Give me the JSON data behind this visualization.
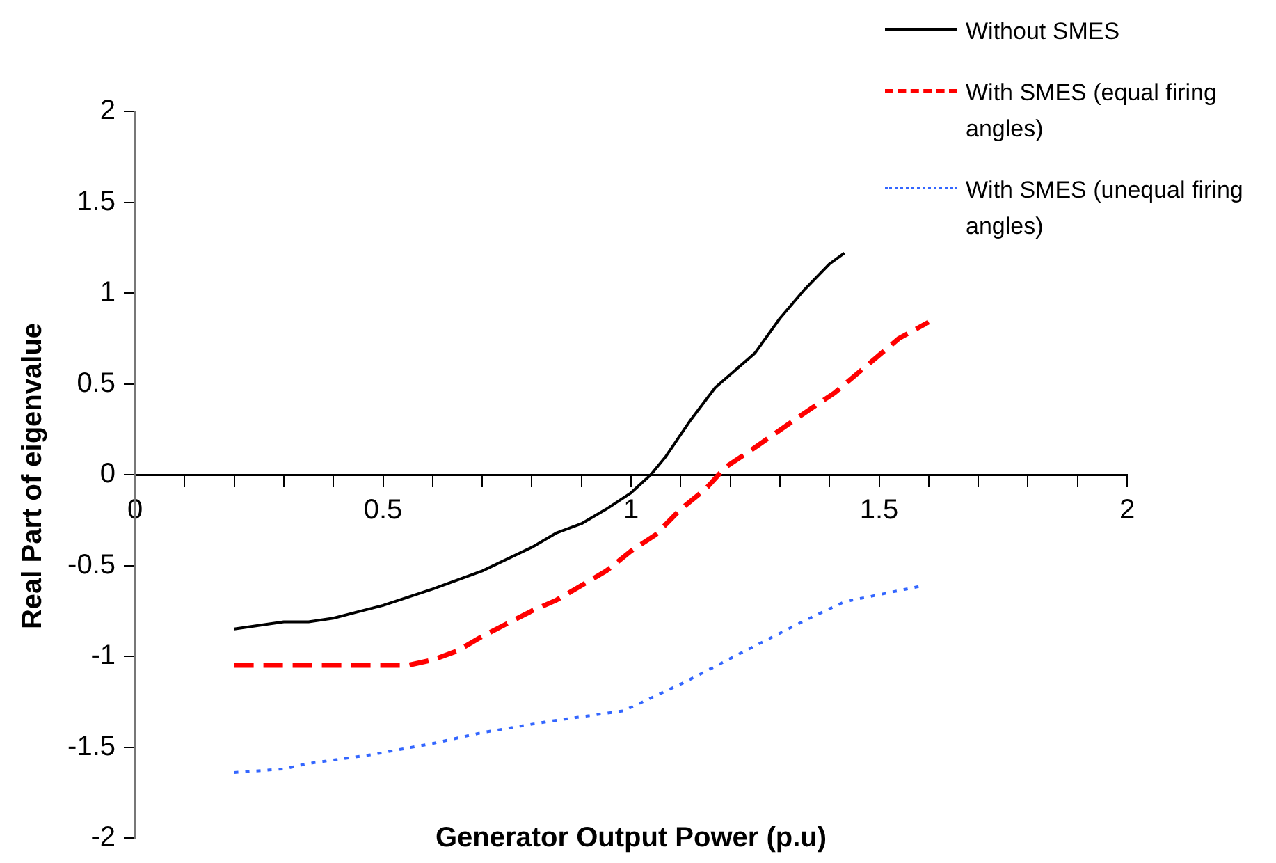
{
  "chart_data": {
    "type": "line",
    "xlabel": "Generator Output Power (p.u)",
    "ylabel": "Real Part of eigenvalue",
    "xlim": [
      0,
      2
    ],
    "xticks": [
      0,
      {
        "value": 0.1,
        "label": null
      },
      {
        "value": 0.2,
        "label": null
      },
      {
        "value": 0.3,
        "label": null
      },
      {
        "value": 0.4,
        "label": null
      },
      0.5,
      {
        "value": 0.6,
        "label": null
      },
      {
        "value": 0.7,
        "label": null
      },
      {
        "value": 0.8,
        "label": null
      },
      {
        "value": 0.9,
        "label": null
      },
      1,
      {
        "value": 1.1,
        "label": null
      },
      {
        "value": 1.2,
        "label": null
      },
      {
        "value": 1.3,
        "label": null
      },
      {
        "value": 1.4,
        "label": null
      },
      1.5,
      {
        "value": 1.6,
        "label": null
      },
      {
        "value": 1.7,
        "label": null
      },
      {
        "value": 1.8,
        "label": null
      },
      {
        "value": 1.9,
        "label": null
      },
      2
    ],
    "ylim": [
      -2,
      2
    ],
    "yticks": [
      -2,
      -1.5,
      -1,
      -0.5,
      0,
      0.5,
      1,
      1.5,
      2
    ],
    "grid": false,
    "legend": "top right",
    "marker": "none",
    "series": [
      {
        "name": "Without SMES",
        "color": "#000000",
        "line_style": "solid",
        "x": [
          0.2,
          0.3,
          0.35,
          0.4,
          0.5,
          0.6,
          0.7,
          0.8,
          0.85,
          0.9,
          0.95,
          1.0,
          1.04,
          1.07,
          1.12,
          1.17,
          1.25,
          1.3,
          1.35,
          1.4,
          1.43
        ],
        "values": [
          -0.85,
          -0.81,
          -0.81,
          -0.79,
          -0.72,
          -0.63,
          -0.53,
          -0.4,
          -0.32,
          -0.27,
          -0.19,
          -0.1,
          0,
          0.1,
          0.3,
          0.48,
          0.67,
          0.86,
          1.02,
          1.16,
          1.22
        ]
      },
      {
        "name": "With SMES (equal firing angles)",
        "color": "#ff0000",
        "line_style": "dashed",
        "x": [
          0.2,
          0.3,
          0.4,
          0.5,
          0.55,
          0.6,
          0.65,
          0.7,
          0.8,
          0.85,
          0.9,
          0.95,
          1.0,
          1.05,
          1.1,
          1.15,
          1.19,
          1.25,
          1.35,
          1.41,
          1.54,
          1.6
        ],
        "values": [
          -1.05,
          -1.05,
          -1.05,
          -1.05,
          -1.05,
          -1.02,
          -0.97,
          -0.89,
          -0.75,
          -0.69,
          -0.61,
          -0.53,
          -0.42,
          -0.33,
          -0.19,
          -0.08,
          0.04,
          0.15,
          0.34,
          0.45,
          0.75,
          0.84
        ]
      },
      {
        "name": "With SMES (unequal firing angles)",
        "color": "#3366ff",
        "line_style": "dotted",
        "x": [
          0.2,
          0.3,
          0.35,
          0.48,
          0.6,
          0.7,
          0.83,
          0.985,
          1.11,
          1.23,
          1.36,
          1.43,
          1.59
        ],
        "values": [
          -1.64,
          -1.62,
          -1.59,
          -1.54,
          -1.48,
          -1.42,
          -1.36,
          -1.3,
          -1.14,
          -0.97,
          -0.79,
          -0.7,
          -0.61
        ]
      }
    ]
  }
}
